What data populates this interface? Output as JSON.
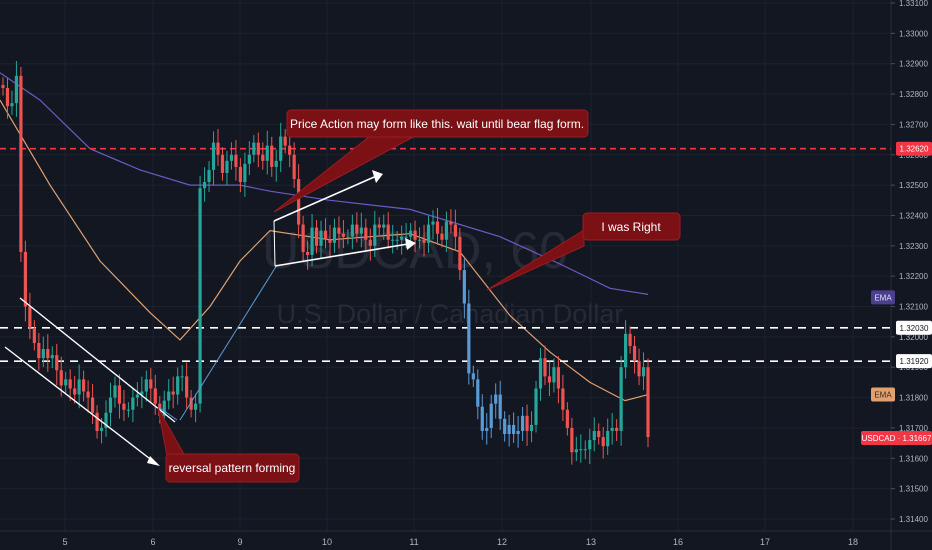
{
  "chart_data": {
    "type": "candlestick",
    "symbol_watermark": "USDCAD, 60",
    "description_watermark": "U.S. Dollar / Canadian Dollar",
    "x_ticks": [
      "5",
      "6",
      "9",
      "10",
      "11",
      "12",
      "13",
      "16",
      "17",
      "18"
    ],
    "y_ticks": [
      "1.33100",
      "1.33000",
      "1.32900",
      "1.32800",
      "1.32700",
      "1.32600",
      "1.32500",
      "1.32400",
      "1.32300",
      "1.32200",
      "1.32100",
      "1.32000",
      "1.31900",
      "1.31800",
      "1.31700",
      "1.31600",
      "1.31500",
      "1.31400"
    ],
    "ylim": [
      1.3137,
      1.3312
    ],
    "grid": true,
    "horizontal_lines": [
      {
        "value": 1.3262,
        "label": "1.32620",
        "color": "#f23645",
        "dash": "dense"
      },
      {
        "value": 1.3203,
        "label": "1.32030",
        "color": "#ffffff",
        "dash": "wide"
      },
      {
        "value": 1.3192,
        "label": "1.31920",
        "color": "#ffffff",
        "dash": "wide"
      }
    ],
    "price_tags": [
      {
        "text": "EMA",
        "value": 1.3213,
        "bg": "#4a3f8f",
        "fg": "#e0dcff"
      },
      {
        "text": "EMA",
        "value": 1.3181,
        "bg": "#e0a070",
        "fg": "#3a2a1a"
      },
      {
        "text": "USDCAD · 1.31667",
        "value": 1.31667,
        "bg": "#f23645",
        "fg": "#ffffff"
      }
    ],
    "annotations": [
      {
        "text": "Price Action may form like this. wait until bear flag form."
      },
      {
        "text": "I was Right"
      },
      {
        "text": "reversal pattern forming"
      }
    ],
    "series": [
      {
        "name": "USDCAD",
        "style": "candles",
        "points": [
          [
            1.3283,
            1.3282
          ],
          [
            1.3282,
            1.3276
          ],
          [
            1.3276,
            1.3277
          ],
          [
            1.3277,
            1.3286
          ],
          [
            1.3286,
            1.3228
          ],
          [
            1.3228,
            1.321
          ],
          [
            1.321,
            1.3203
          ],
          [
            1.3203,
            1.3198
          ],
          [
            1.3198,
            1.3193
          ],
          [
            1.3193,
            1.3196
          ],
          [
            1.3196,
            1.3193
          ],
          [
            1.3193,
            1.3194
          ],
          [
            1.3194,
            1.3189
          ],
          [
            1.3189,
            1.3184
          ],
          [
            1.3184,
            1.3186
          ],
          [
            1.3186,
            1.3183
          ],
          [
            1.3183,
            1.3181
          ],
          [
            1.3181,
            1.3186
          ],
          [
            1.3186,
            1.3182
          ],
          [
            1.3182,
            1.318
          ],
          [
            1.318,
            1.3175
          ],
          [
            1.3175,
            1.3169
          ],
          [
            1.3169,
            1.317
          ],
          [
            1.317,
            1.3175
          ],
          [
            1.3175,
            1.318
          ],
          [
            1.318,
            1.3184
          ],
          [
            1.3184,
            1.3178
          ],
          [
            1.3178,
            1.3176
          ],
          [
            1.3176,
            1.3176
          ],
          [
            1.3176,
            1.318
          ],
          [
            1.318,
            1.3181
          ],
          [
            1.3181,
            1.3182
          ],
          [
            1.3182,
            1.3186
          ],
          [
            1.3186,
            1.3183
          ],
          [
            1.3183,
            1.3178
          ],
          [
            1.3178,
            1.3174
          ],
          [
            1.3174,
            1.3179
          ],
          [
            1.3179,
            1.3182
          ],
          [
            1.3182,
            1.3181
          ],
          [
            1.3181,
            1.3187
          ],
          [
            1.3187,
            1.3187
          ],
          [
            1.3187,
            1.318
          ],
          [
            1.318,
            1.3176
          ],
          [
            1.3176,
            1.3178
          ],
          [
            1.3178,
            1.3249
          ],
          [
            1.3249,
            1.3251
          ],
          [
            1.3251,
            1.3255
          ],
          [
            1.3255,
            1.3264
          ],
          [
            1.3264,
            1.326
          ],
          [
            1.326,
            1.3254
          ],
          [
            1.3254,
            1.3258
          ],
          [
            1.3258,
            1.326
          ],
          [
            1.326,
            1.3256
          ],
          [
            1.3256,
            1.3251
          ],
          [
            1.3251,
            1.3257
          ],
          [
            1.3257,
            1.326
          ],
          [
            1.326,
            1.3264
          ],
          [
            1.3264,
            1.326
          ],
          [
            1.326,
            1.3258
          ],
          [
            1.3258,
            1.3263
          ],
          [
            1.3263,
            1.3256
          ],
          [
            1.3256,
            1.3258
          ],
          [
            1.3258,
            1.3266
          ],
          [
            1.3266,
            1.3263
          ],
          [
            1.3263,
            1.326
          ],
          [
            1.326,
            1.3252
          ],
          [
            1.3252,
            1.3237
          ],
          [
            1.3237,
            1.3228
          ],
          [
            1.3228,
            1.3227
          ],
          [
            1.3227,
            1.3236
          ],
          [
            1.3236,
            1.323
          ],
          [
            1.323,
            1.3235
          ],
          [
            1.3235,
            1.3232
          ],
          [
            1.3232,
            1.3231
          ],
          [
            1.3231,
            1.3236
          ],
          [
            1.3236,
            1.3234
          ],
          [
            1.3234,
            1.3233
          ],
          [
            1.3233,
            1.3233
          ],
          [
            1.3233,
            1.3237
          ],
          [
            1.3237,
            1.3234
          ],
          [
            1.3234,
            1.3236
          ],
          [
            1.3236,
            1.3232
          ],
          [
            1.3232,
            1.323
          ],
          [
            1.323,
            1.3237
          ],
          [
            1.3237,
            1.3236
          ],
          [
            1.3236,
            1.3237
          ],
          [
            1.3237,
            1.3232
          ],
          [
            1.3232,
            1.3232
          ],
          [
            1.3232,
            1.3232
          ],
          [
            1.3232,
            1.3233
          ],
          [
            1.3233,
            1.3233
          ],
          [
            1.3233,
            1.3235
          ],
          [
            1.3235,
            1.3232
          ],
          [
            1.3232,
            1.3232
          ],
          [
            1.3232,
            1.3231
          ],
          [
            1.3231,
            1.3237
          ],
          [
            1.3237,
            1.3238
          ],
          [
            1.3238,
            1.3234
          ],
          [
            1.3234,
            1.3232
          ],
          [
            1.3232,
            1.3238
          ],
          [
            1.3238,
            1.3237
          ],
          [
            1.3237,
            1.3233
          ],
          [
            1.3233,
            1.3222
          ],
          [
            1.3222,
            1.3211
          ],
          [
            1.3211,
            1.3188
          ],
          [
            1.3188,
            1.3186
          ],
          [
            1.3186,
            1.3177
          ],
          [
            1.3177,
            1.3169
          ],
          [
            1.3169,
            1.317
          ],
          [
            1.317,
            1.3178
          ],
          [
            1.3178,
            1.3181
          ],
          [
            1.3181,
            1.3173
          ],
          [
            1.3173,
            1.3168
          ],
          [
            1.3168,
            1.3171
          ],
          [
            1.3171,
            1.3168
          ],
          [
            1.3168,
            1.3169
          ],
          [
            1.3169,
            1.3174
          ],
          [
            1.3174,
            1.3169
          ],
          [
            1.3169,
            1.3171
          ],
          [
            1.3171,
            1.3183
          ],
          [
            1.3183,
            1.3193
          ],
          [
            1.3193,
            1.3187
          ],
          [
            1.3187,
            1.3185
          ],
          [
            1.3185,
            1.319
          ],
          [
            1.319,
            1.3183
          ],
          [
            1.3183,
            1.3176
          ],
          [
            1.3176,
            1.317
          ],
          [
            1.317,
            1.3162
          ],
          [
            1.3162,
            1.3163
          ],
          [
            1.3163,
            1.3163
          ],
          [
            1.3163,
            1.3163
          ],
          [
            1.3163,
            1.3166
          ],
          [
            1.3166,
            1.3169
          ],
          [
            1.3169,
            1.3167
          ],
          [
            1.3167,
            1.3164
          ],
          [
            1.3164,
            1.3169
          ],
          [
            1.3169,
            1.317
          ],
          [
            1.317,
            1.3169
          ],
          [
            1.3169,
            1.319
          ],
          [
            1.319,
            1.3201
          ],
          [
            1.3201,
            1.3197
          ],
          [
            1.3197,
            1.3192
          ],
          [
            1.3192,
            1.3187
          ],
          [
            1.3187,
            1.319
          ],
          [
            1.319,
            1.3167
          ]
        ]
      },
      {
        "name": "EMA",
        "style": "line",
        "color": "#6a5bc2",
        "points": [
          [
            0,
            1.3287
          ],
          [
            40,
            1.3278
          ],
          [
            90,
            1.3262
          ],
          [
            140,
            1.3255
          ],
          [
            190,
            1.325
          ],
          [
            240,
            1.325
          ],
          [
            270,
            1.3248
          ],
          [
            330,
            1.3245
          ],
          [
            410,
            1.3242
          ],
          [
            450,
            1.3238
          ],
          [
            500,
            1.3233
          ],
          [
            560,
            1.3224
          ],
          [
            610,
            1.3216
          ],
          [
            648,
            1.3214
          ]
        ]
      },
      {
        "name": "EMA",
        "style": "line",
        "color": "#e0a070",
        "points": [
          [
            0,
            1.3278
          ],
          [
            50,
            1.325
          ],
          [
            100,
            1.3225
          ],
          [
            150,
            1.3208
          ],
          [
            180,
            1.3199
          ],
          [
            210,
            1.321
          ],
          [
            240,
            1.3225
          ],
          [
            270,
            1.3235
          ],
          [
            330,
            1.3232
          ],
          [
            410,
            1.3234
          ],
          [
            460,
            1.3228
          ],
          [
            510,
            1.3207
          ],
          [
            550,
            1.3195
          ],
          [
            590,
            1.3185
          ],
          [
            625,
            1.3179
          ],
          [
            648,
            1.3181
          ]
        ]
      }
    ]
  }
}
